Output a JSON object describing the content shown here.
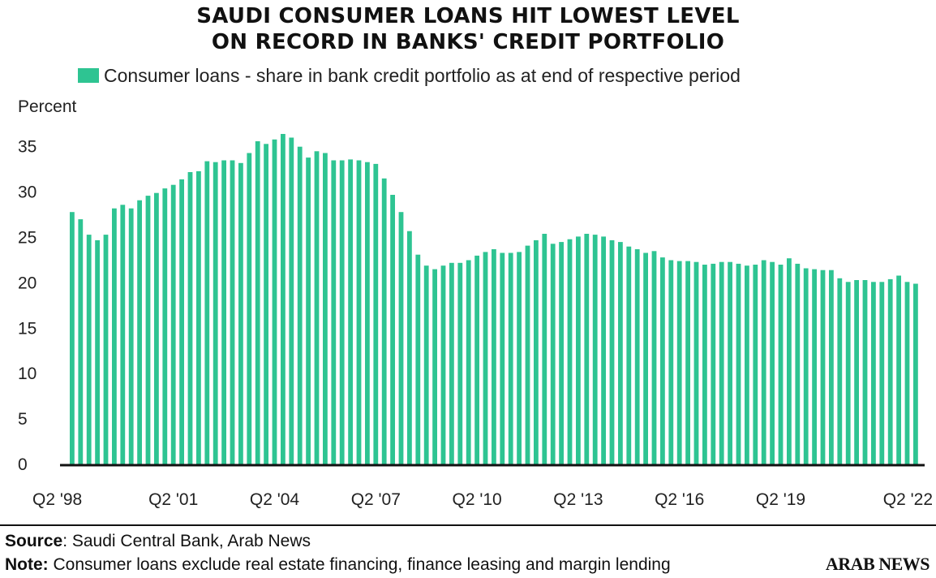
{
  "header": {
    "title_line1": "SAUDI CONSUMER LOANS HIT LOWEST LEVEL",
    "title_line2": "ON RECORD IN BANKS' CREDIT PORTFOLIO"
  },
  "legend": {
    "label": "Consumer loans - share in bank credit portfolio as at end of respective period",
    "color": "#2ec492"
  },
  "footer": {
    "source_label": "Source",
    "source_text": ": Saudi Central Bank, Arab News",
    "note_label": "Note:",
    "note_text": " Consumer loans exclude real estate financing, finance leasing and margin lending",
    "brand": "ARAB NEWS"
  },
  "chart_data": {
    "type": "bar",
    "ylabel": "Percent",
    "ylim": [
      0,
      36
    ],
    "yticks": [
      0,
      5,
      10,
      15,
      20,
      25,
      30,
      35
    ],
    "grid": false,
    "legend_position": "top",
    "bar_color": "#2ec492",
    "xtick_labels": [
      "Q2 '98",
      "Q2 '01",
      "Q2 '04",
      "Q2 '07",
      "Q2 '10",
      "Q2 '13",
      "Q2 '16",
      "Q2 '19",
      "Q2 '22"
    ],
    "series": [
      {
        "name": "Consumer loans - share in bank credit portfolio as at end of respective period",
        "values": [
          27.8,
          27.0,
          25.3,
          24.7,
          25.3,
          28.2,
          28.6,
          28.2,
          29.1,
          29.6,
          29.9,
          30.4,
          30.8,
          31.4,
          32.2,
          32.3,
          33.4,
          33.3,
          33.5,
          33.5,
          33.2,
          34.3,
          35.6,
          35.3,
          35.8,
          36.4,
          36.0,
          35.0,
          33.8,
          34.5,
          34.3,
          33.5,
          33.5,
          33.6,
          33.5,
          33.3,
          33.1,
          31.5,
          29.7,
          27.8,
          25.7,
          23.1,
          21.9,
          21.5,
          21.9,
          22.2,
          22.2,
          22.5,
          23.0,
          23.4,
          23.7,
          23.3,
          23.3,
          23.4,
          24.1,
          24.7,
          25.4,
          24.3,
          24.5,
          24.8,
          25.1,
          25.4,
          25.3,
          25.1,
          24.7,
          24.5,
          24.0,
          23.7,
          23.3,
          23.5,
          22.8,
          22.5,
          22.4,
          22.4,
          22.3,
          22.0,
          22.1,
          22.3,
          22.3,
          22.1,
          21.9,
          22.0,
          22.5,
          22.3,
          22.0,
          22.7,
          22.1,
          21.6,
          21.5,
          21.4,
          21.4,
          20.5,
          20.1,
          20.3,
          20.3,
          20.1,
          20.1,
          20.4,
          20.8,
          20.1,
          19.9
        ]
      }
    ]
  }
}
